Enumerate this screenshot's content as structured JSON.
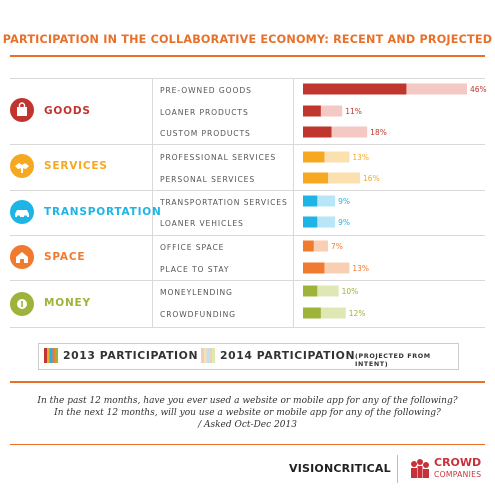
{
  "title": "PARTICIPATION IN THE COLLABORATIVE ECONOMY: RECENT AND PROJECTED",
  "chart_data": {
    "type": "bar",
    "orientation": "horizontal",
    "stacked": false,
    "groups": [
      {
        "name": "GOODS",
        "icon": "shopping-bag-icon",
        "color": "#c0352d",
        "light": "#f4c9c4",
        "items": [
          {
            "label": "PRE-OWNED GOODS",
            "value_2013": 29,
            "value_2014": 46,
            "value_label": "46%"
          },
          {
            "label": "LOANER PRODUCTS",
            "value_2013": 5,
            "value_2014": 11,
            "value_label": "11%"
          },
          {
            "label": "CUSTOM PRODUCTS",
            "value_2013": 8,
            "value_2014": 18,
            "value_label": "18%"
          }
        ]
      },
      {
        "name": "SERVICES",
        "icon": "hands-icon",
        "color": "#f5a820",
        "light": "#fbe0b0",
        "items": [
          {
            "label": "PROFESSIONAL SERVICES",
            "value_2013": 6,
            "value_2014": 13,
            "value_label": "13%"
          },
          {
            "label": "PERSONAL SERVICES",
            "value_2013": 7,
            "value_2014": 16,
            "value_label": "16%"
          }
        ]
      },
      {
        "name": "TRANSPORTATION",
        "icon": "car-icon",
        "color": "#1eb4e6",
        "light": "#b9e6f7",
        "items": [
          {
            "label": "TRANSPORTATION SERVICES",
            "value_2013": 4,
            "value_2014": 9,
            "value_label": "9%"
          },
          {
            "label": "LOANER VEHICLES",
            "value_2013": 4,
            "value_2014": 9,
            "value_label": "9%"
          }
        ]
      },
      {
        "name": "SPACE",
        "icon": "house-icon",
        "color": "#f07a2e",
        "light": "#f9cfb3",
        "items": [
          {
            "label": "OFFICE SPACE",
            "value_2013": 3,
            "value_2014": 7,
            "value_label": "7%"
          },
          {
            "label": "PLACE TO STAY",
            "value_2013": 6,
            "value_2014": 13,
            "value_label": "13%"
          }
        ]
      },
      {
        "name": "MONEY",
        "icon": "coin-icon",
        "color": "#9db33a",
        "light": "#dfe7b5",
        "items": [
          {
            "label": "MONEYLENDING",
            "value_2013": 4,
            "value_2014": 10,
            "value_label": "10%"
          },
          {
            "label": "CROWDFUNDING",
            "value_2013": 5,
            "value_2014": 12,
            "value_label": "12%"
          }
        ]
      }
    ],
    "xlim": [
      0,
      46
    ],
    "legend": [
      {
        "label": "2013 PARTICIPATION",
        "style": "solid"
      },
      {
        "label": "2014 PARTICIPATION",
        "style": "light",
        "note": "(PROJECTED FROM INTENT)"
      }
    ],
    "legend_position": "bottom"
  },
  "questions": [
    "In the past 12 months, have you ever used a website or mobile app for any of the following?",
    "In the next 12 months, will you use a website or mobile app for any of the following?",
    "/ Asked Oct-Dec 2013"
  ],
  "footer": {
    "visioncritical": "VISIONCRITICAL",
    "crowd": "CROWD",
    "companies": "COMPANIES"
  },
  "colors": {
    "accent": "#e8702a"
  }
}
